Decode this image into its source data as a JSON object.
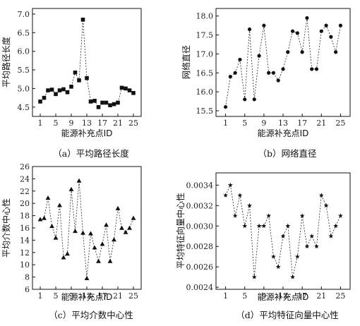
{
  "chart_data": [
    {
      "id": "a",
      "type": "line",
      "marker": "square",
      "caption": "（a）平均路径长度",
      "xlabel": "能源补充点ID",
      "ylabel": "平均路径长度",
      "x": [
        1,
        2,
        3,
        4,
        5,
        6,
        7,
        8,
        9,
        10,
        11,
        12,
        13,
        14,
        15,
        16,
        17,
        18,
        19,
        20,
        21,
        22,
        23,
        24,
        25
      ],
      "series": [
        {
          "values": [
            4.65,
            4.75,
            4.95,
            4.97,
            4.85,
            4.95,
            4.98,
            4.9,
            5.05,
            5.43,
            5.22,
            6.85,
            5.28,
            4.65,
            4.67,
            4.5,
            4.62,
            4.62,
            4.55,
            4.58,
            4.62,
            5.02,
            5.0,
            4.95,
            4.88
          ]
        }
      ],
      "xticks": [
        "1",
        "5",
        "9",
        "13",
        "17",
        "21",
        "25"
      ],
      "yticks": [
        "4.5",
        "5.0",
        "5.5",
        "6.0",
        "6.5",
        "7.0"
      ],
      "xlim": [
        -1,
        27
      ],
      "ylim": [
        4.25,
        7.15
      ],
      "grid": false
    },
    {
      "id": "b",
      "type": "line",
      "marker": "circle",
      "caption": "（b）网络直径",
      "xlabel": "能源补充点ID",
      "ylabel": "网络直径",
      "x": [
        1,
        2,
        3,
        4,
        5,
        6,
        7,
        8,
        9,
        10,
        11,
        12,
        13,
        14,
        15,
        16,
        17,
        18,
        19,
        20,
        21,
        22,
        23,
        24,
        25
      ],
      "series": [
        {
          "values": [
            15.6,
            16.4,
            16.5,
            16.85,
            15.8,
            17.65,
            15.8,
            16.95,
            17.75,
            16.5,
            16.5,
            16.3,
            16.6,
            17.05,
            17.6,
            17.55,
            17.05,
            17.95,
            16.6,
            16.6,
            17.6,
            17.75,
            17.45,
            17.05,
            17.75
          ]
        }
      ],
      "xticks": [
        "1",
        "5",
        "9",
        "13",
        "17",
        "21",
        "25"
      ],
      "yticks": [
        "15.5",
        "16.0",
        "16.5",
        "17.0",
        "17.5",
        "18.0"
      ],
      "xlim": [
        -1,
        27
      ],
      "ylim": [
        15.35,
        18.2
      ],
      "grid": false
    },
    {
      "id": "c",
      "type": "line",
      "marker": "triangle",
      "caption": "（c）平均介数中心性",
      "xlabel": "能源补充点ID",
      "ylabel": "平均介数中心性",
      "x": [
        1,
        2,
        3,
        4,
        5,
        6,
        7,
        8,
        9,
        10,
        11,
        12,
        13,
        14,
        15,
        16,
        17,
        18,
        19,
        20,
        21,
        22,
        23,
        24,
        25
      ],
      "series": [
        {
          "values": [
            17.4,
            17.6,
            20.9,
            16.3,
            14.4,
            19.7,
            11.2,
            11.8,
            22.3,
            15.5,
            23.7,
            15.2,
            7.8,
            15.1,
            12.8,
            10.6,
            13.4,
            16.5,
            10.6,
            14.1,
            19.2,
            16.0,
            15.3,
            16.0,
            17.6
          ]
        }
      ],
      "xticks": [
        "1",
        "5",
        "9",
        "13",
        "17",
        "21",
        "25"
      ],
      "yticks": [
        "6",
        "8",
        "10",
        "12",
        "14",
        "16",
        "18",
        "20",
        "22",
        "24",
        "26"
      ],
      "xlim": [
        -1,
        27
      ],
      "ylim": [
        6,
        26
      ],
      "grid": false
    },
    {
      "id": "d",
      "type": "line",
      "marker": "star",
      "caption": "（d）平均特征向量中心性",
      "xlabel": "能源补充点ID",
      "ylabel": "平均特征向量中心性",
      "x": [
        1,
        2,
        3,
        4,
        5,
        6,
        7,
        8,
        9,
        10,
        11,
        12,
        13,
        14,
        15,
        16,
        17,
        18,
        19,
        20,
        21,
        22,
        23,
        24,
        25
      ],
      "series": [
        {
          "values": [
            0.0033,
            0.0034,
            0.0031,
            0.0033,
            0.003,
            0.0032,
            0.0025,
            0.003,
            0.003,
            0.0031,
            0.0027,
            0.0026,
            0.0029,
            0.003,
            0.0025,
            0.0027,
            0.0031,
            0.0028,
            0.0029,
            0.0028,
            0.0033,
            0.0032,
            0.0029,
            0.003,
            0.0031
          ]
        }
      ],
      "xticks": [
        "1",
        "5",
        "9",
        "13",
        "17",
        "21",
        "25"
      ],
      "yticks": [
        "0.0024",
        "0.0026",
        "0.0028",
        "0.0030",
        "0.0032",
        "0.0034"
      ],
      "xlim": [
        -1,
        27
      ],
      "ylim": [
        0.00238,
        0.00352
      ],
      "grid": false
    }
  ]
}
